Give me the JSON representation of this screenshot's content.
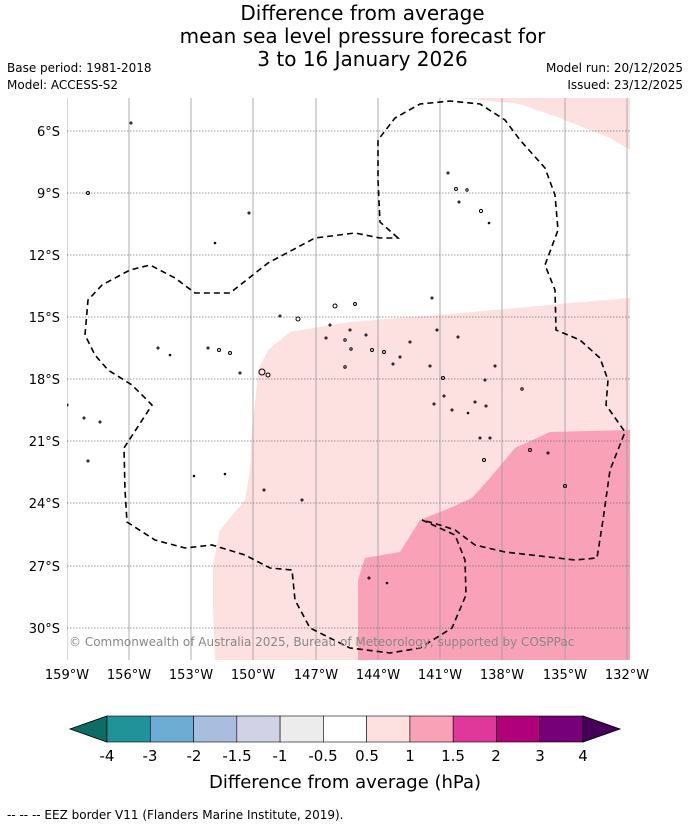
{
  "title": {
    "line1": "Difference from average",
    "line2": "mean sea level pressure forecast for",
    "line3": "3 to 16 January 2026"
  },
  "meta": {
    "base_period": "Base period: 1981-2018",
    "model": "Model: ACCESS-S2",
    "model_run": "Model run: 20/12/2025",
    "issued": "Issued: 23/12/2025"
  },
  "map": {
    "lat_labels": [
      "6°S",
      "9°S",
      "12°S",
      "15°S",
      "18°S",
      "21°S",
      "24°S",
      "27°S",
      "30°S"
    ],
    "lon_labels": [
      "159°W",
      "156°W",
      "153°W",
      "150°W",
      "147°W",
      "144°W",
      "141°W",
      "138°W",
      "135°W",
      "132°W"
    ],
    "copyright": "© Commonwealth of Australia 2025, Bureau of Meteorology, supported by COSPPac"
  },
  "legend": {
    "tick_labels": [
      "-4",
      "-3",
      "-2",
      "-1.5",
      "-1",
      "-0.5",
      "0.5",
      "1",
      "1.5",
      "2",
      "3",
      "4"
    ],
    "colors": [
      "#1f9398",
      "#6eadd3",
      "#a9bddf",
      "#d2d2e6",
      "#ececec",
      "#ffffff",
      "#fde0e0",
      "#f9a1b7",
      "#e0379a",
      "#b0007a",
      "#760077"
    ],
    "under_color": "#0d6c63",
    "over_color": "#45005a",
    "label": "Difference from average (hPa)"
  },
  "colors": {
    "anomaly_0_5_to_1": "#fde0e0",
    "anomaly_1_to_1_5": "#f9a1b7"
  },
  "footer": "--  --  -- EEZ border V11 (Flanders Marine Institute, 2019)."
}
